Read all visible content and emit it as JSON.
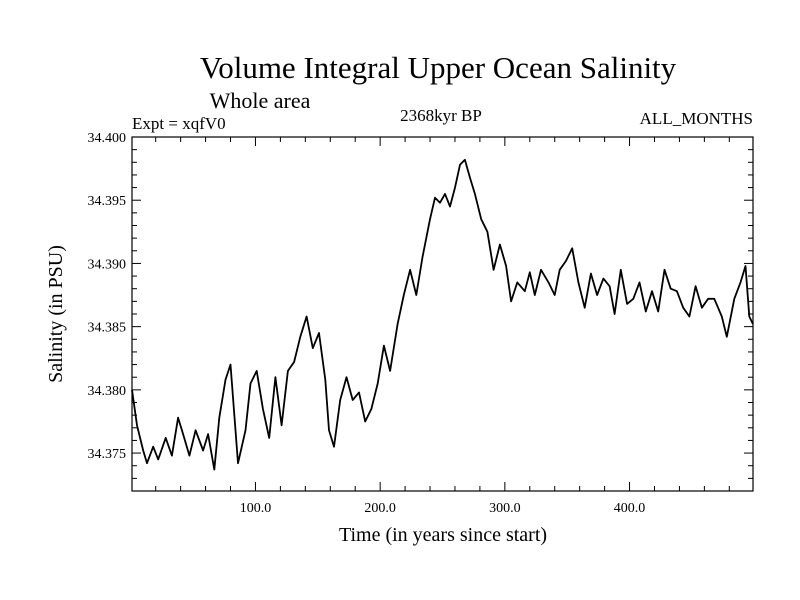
{
  "chart_data": {
    "type": "line",
    "title": "Volume Integral Upper Ocean Salinity",
    "subtitle": "Whole area",
    "annotations": {
      "left": "Expt = xqfV0",
      "center": "2368kyr BP",
      "right": "ALL_MONTHS"
    },
    "xlabel": "Time (in years since start)",
    "ylabel": "Salinity (in PSU)",
    "xlim": [
      1,
      499
    ],
    "ylim": [
      34.372,
      34.4
    ],
    "x_ticks": [
      100,
      200,
      300,
      400
    ],
    "x_tick_labels": [
      "100.0",
      "200.0",
      "300.0",
      "400.0"
    ],
    "y_ticks": [
      34.375,
      34.38,
      34.385,
      34.39,
      34.395,
      34.4
    ],
    "y_tick_labels": [
      "34.375",
      "34.380",
      "34.385",
      "34.390",
      "34.395",
      "34.400"
    ],
    "grid": false,
    "series": [
      {
        "name": "Salinity",
        "color": "#000000",
        "x": [
          1,
          5,
          10,
          13,
          18,
          22,
          28,
          33,
          38,
          42,
          47,
          52,
          58,
          62,
          67,
          71,
          76,
          80,
          86,
          92,
          96,
          101,
          106,
          111,
          116,
          121,
          126,
          131,
          136,
          141,
          146,
          151,
          156,
          159,
          163,
          168,
          173,
          178,
          183,
          188,
          193,
          198,
          203,
          208,
          214,
          219,
          224,
          229,
          234,
          240,
          244,
          248,
          252,
          256,
          260,
          264,
          268,
          272,
          276,
          281,
          286,
          291,
          296,
          301,
          305,
          310,
          316,
          320,
          324,
          329,
          335,
          340,
          344,
          349,
          354,
          359,
          364,
          369,
          374,
          379,
          384,
          388,
          393,
          398,
          403,
          408,
          413,
          418,
          423,
          428,
          433,
          438,
          443,
          448,
          453,
          458,
          463,
          468,
          474,
          478,
          484,
          489,
          493,
          496,
          499
        ],
        "values": [
          34.38,
          34.3772,
          34.3752,
          34.3742,
          34.3755,
          34.3745,
          34.3762,
          34.3748,
          34.3778,
          34.3765,
          34.3748,
          34.3768,
          34.3752,
          34.3765,
          34.3737,
          34.3778,
          34.3808,
          34.382,
          34.3742,
          34.3768,
          34.3805,
          34.3815,
          34.3785,
          34.3762,
          34.381,
          34.3772,
          34.3815,
          34.3822,
          34.3842,
          34.3858,
          34.3833,
          34.3845,
          34.3808,
          34.3768,
          34.3755,
          34.3792,
          34.381,
          34.3792,
          34.3798,
          34.3775,
          34.3785,
          34.3805,
          34.3835,
          34.3815,
          34.3852,
          34.3875,
          34.3895,
          34.3875,
          34.3905,
          34.3935,
          34.3952,
          34.3948,
          34.3955,
          34.3945,
          34.396,
          34.3978,
          34.3982,
          34.3968,
          34.3955,
          34.3935,
          34.3925,
          34.3895,
          34.3915,
          34.3898,
          34.387,
          34.3885,
          34.3878,
          34.3893,
          34.3875,
          34.3895,
          34.3885,
          34.3875,
          34.3895,
          34.3902,
          34.3912,
          34.3885,
          34.3865,
          34.3892,
          34.3875,
          34.3888,
          34.3882,
          34.386,
          34.3895,
          34.3868,
          34.3872,
          34.3885,
          34.3862,
          34.3878,
          34.3862,
          34.3895,
          34.388,
          34.3878,
          34.3865,
          34.3858,
          34.3882,
          34.3865,
          34.3872,
          34.3872,
          34.3858,
          34.3842,
          34.3872,
          34.3885,
          34.3898,
          34.3858,
          34.3852
        ]
      }
    ]
  }
}
